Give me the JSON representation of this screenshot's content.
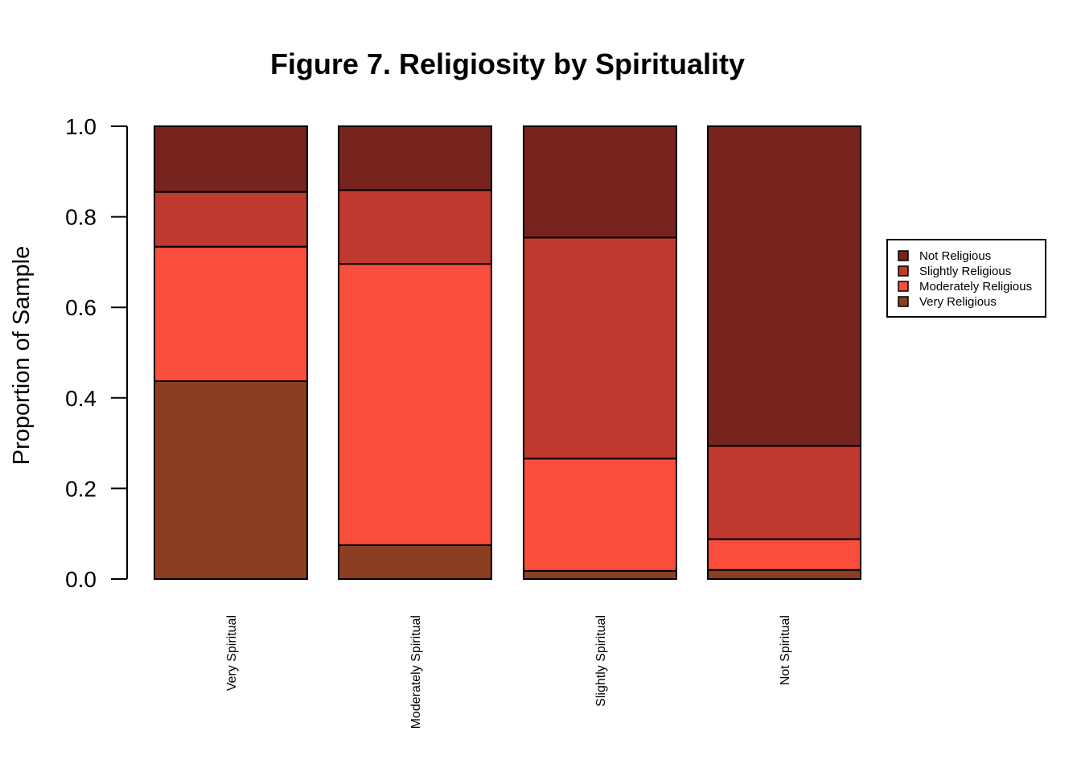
{
  "chart_data": {
    "type": "bar",
    "stacked": true,
    "title": "Figure 7. Religiosity by Spirituality",
    "xlabel": "",
    "ylabel": "Proportion of Sample",
    "ylim": [
      0,
      1
    ],
    "yticks": [
      "0.0",
      "0.2",
      "0.4",
      "0.6",
      "0.8",
      "1.0"
    ],
    "ytick_values": [
      0,
      0.2,
      0.4,
      0.6,
      0.8,
      1.0
    ],
    "categories": [
      "Very Spiritual",
      "Moderately Spiritual",
      "Slightly Spiritual",
      "Not Spiritual"
    ],
    "series": [
      {
        "name": "Very Religious",
        "color": "#8B3E22",
        "values": [
          0.437,
          0.075,
          0.018,
          0.02
        ]
      },
      {
        "name": "Moderately Religious",
        "color": "#FB4D3B",
        "values": [
          0.297,
          0.621,
          0.248,
          0.068
        ]
      },
      {
        "name": "Slightly Religious",
        "color": "#C0392E",
        "values": [
          0.121,
          0.163,
          0.488,
          0.206
        ]
      },
      {
        "name": "Not Religious",
        "color": "#77241F",
        "values": [
          0.145,
          0.141,
          0.246,
          0.706
        ]
      }
    ],
    "legend": {
      "placement": "right",
      "order": [
        "Not Religious",
        "Slightly Religious",
        "Moderately Religious",
        "Very Religious"
      ]
    },
    "grid": false
  }
}
